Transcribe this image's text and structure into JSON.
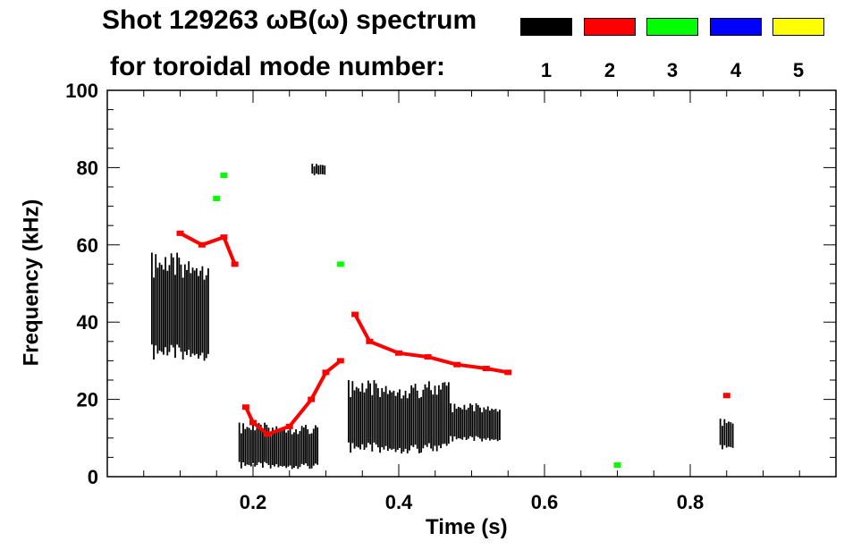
{
  "header": {
    "title_line1": "Shot 129263 ωB(ω) spectrum",
    "title_line2": "for toroidal mode number:"
  },
  "legend": [
    {
      "label": "1",
      "color": "#000000"
    },
    {
      "label": "2",
      "color": "#ff0000"
    },
    {
      "label": "3",
      "color": "#00ff00"
    },
    {
      "label": "4",
      "color": "#0000ff"
    },
    {
      "label": "5",
      "color": "#ffff00"
    }
  ],
  "chart_data": {
    "type": "heatmap",
    "title": "Shot 129263 ωB(ω) spectrum",
    "xlabel": "Time (s)",
    "ylabel": "Frequency (kHz)",
    "xlim": [
      0.0,
      1.0
    ],
    "ylim": [
      0,
      100
    ],
    "xticks": [
      0.2,
      0.4,
      0.6,
      0.8
    ],
    "xtick_labels": [
      "0.2",
      "0.4",
      "0.6",
      "0.8"
    ],
    "yticks": [
      0,
      20,
      40,
      60,
      80,
      100
    ],
    "ytick_labels": [
      "0",
      "20",
      "40",
      "60",
      "80",
      "100"
    ],
    "series": [
      {
        "name": "1",
        "color": "#000000",
        "regions": [
          {
            "t": [
              0.06,
              0.14
            ],
            "f": [
              30,
              58
            ]
          },
          {
            "t": [
              0.18,
              0.29
            ],
            "f": [
              2,
              14
            ]
          },
          {
            "t": [
              0.28,
              0.3
            ],
            "f": [
              78,
              81
            ]
          },
          {
            "t": [
              0.33,
              0.47
            ],
            "f": [
              6,
              25
            ]
          },
          {
            "t": [
              0.47,
              0.54
            ],
            "f": [
              9,
              19
            ]
          },
          {
            "t": [
              0.84,
              0.86
            ],
            "f": [
              7,
              15
            ]
          }
        ]
      },
      {
        "name": "2",
        "color": "#ff0000",
        "points": [
          [
            0.1,
            63
          ],
          [
            0.13,
            60
          ],
          [
            0.16,
            62
          ],
          [
            0.175,
            55
          ],
          [
            0.19,
            18
          ],
          [
            0.2,
            14
          ],
          [
            0.22,
            11
          ],
          [
            0.25,
            13
          ],
          [
            0.28,
            20
          ],
          [
            0.3,
            27
          ],
          [
            0.32,
            30
          ],
          [
            0.34,
            42
          ],
          [
            0.36,
            35
          ],
          [
            0.4,
            32
          ],
          [
            0.44,
            31
          ],
          [
            0.48,
            29
          ],
          [
            0.52,
            28
          ],
          [
            0.55,
            27
          ],
          [
            0.85,
            21
          ]
        ]
      },
      {
        "name": "3",
        "color": "#00ff00",
        "points": [
          [
            0.15,
            72
          ],
          [
            0.16,
            78
          ],
          [
            0.32,
            55
          ],
          [
            0.7,
            3
          ]
        ]
      }
    ]
  }
}
